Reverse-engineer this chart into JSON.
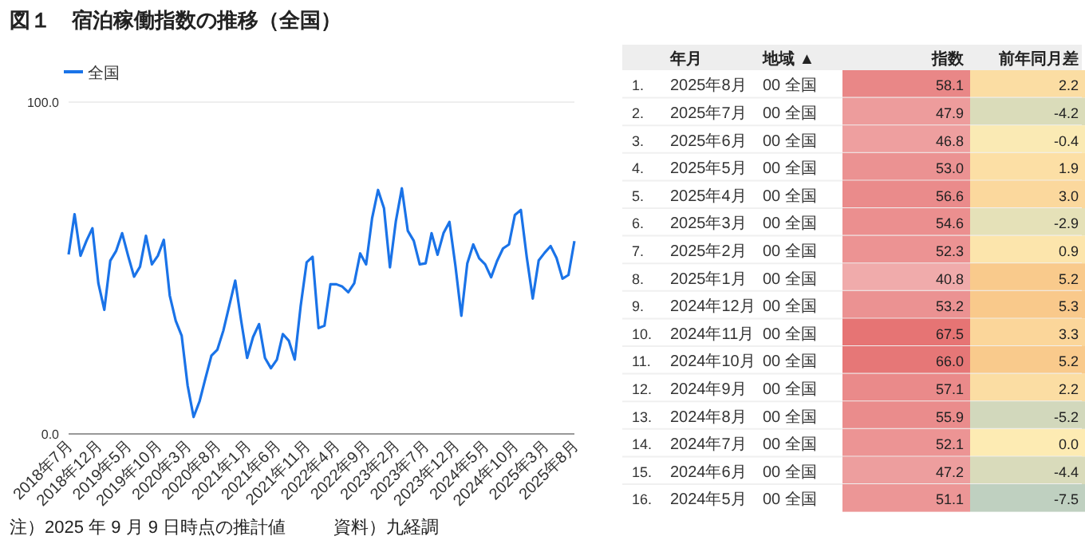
{
  "chart_data": [
    {
      "type": "line",
      "title": "図１　宿泊稼働指数の推移（全国）",
      "categories": [
        "2018年7月",
        null,
        null,
        null,
        null,
        "2018年12月",
        null,
        null,
        null,
        null,
        "2019年5月",
        null,
        null,
        null,
        null,
        "2019年10月",
        null,
        null,
        null,
        null,
        "2020年3月",
        null,
        null,
        null,
        null,
        "2020年8月",
        null,
        null,
        null,
        null,
        "2021年1月",
        null,
        null,
        null,
        null,
        "2021年6月",
        null,
        null,
        null,
        null,
        "2021年11月",
        null,
        null,
        null,
        null,
        "2022年4月",
        null,
        null,
        null,
        null,
        "2022年9月",
        null,
        null,
        null,
        null,
        "2023年2月",
        null,
        null,
        null,
        null,
        "2023年7月",
        null,
        null,
        null,
        null,
        "2023年12月",
        null,
        null,
        null,
        null,
        "2024年5月",
        null,
        null,
        null,
        null,
        "2024年10月",
        null,
        null,
        null,
        null,
        "2025年3月",
        null,
        null,
        null,
        null,
        "2025年8月"
      ],
      "series": [
        {
          "name": "全国",
          "color": "#1a73e8",
          "values": [
            54.1,
            66.2,
            53.7,
            58.2,
            62.0,
            45.4,
            37.4,
            52.2,
            55.2,
            60.5,
            53.7,
            47.4,
            50.4,
            59.7,
            51.1,
            53.7,
            58.5,
            41.7,
            34.1,
            29.6,
            14.6,
            5.1,
            9.8,
            16.8,
            23.6,
            25.4,
            31.1,
            38.6,
            46.2,
            34.1,
            22.9,
            29.2,
            33.1,
            22.9,
            19.8,
            22.4,
            30.1,
            28.1,
            22.4,
            38.6,
            51.7,
            53.4,
            31.9,
            32.6,
            45.1,
            45.1,
            44.4,
            42.7,
            45.4,
            54.4,
            51.1,
            65.0,
            73.5,
            68.0,
            50.2,
            64.2,
            74.0,
            61.2,
            58.2,
            51.1,
            51.4,
            60.5,
            54.0,
            60.5,
            63.9,
            50.7,
            35.6,
            51.4,
            57.1,
            52.9,
            51.1,
            47.2,
            52.1,
            55.9,
            57.1,
            66.0,
            67.5,
            53.2,
            40.8,
            52.3,
            54.6,
            56.6,
            53.0,
            46.8,
            47.9,
            58.1
          ]
        }
      ],
      "ylim": [
        0,
        100
      ],
      "yticks": [
        {
          "value": 0,
          "label": "0.0"
        },
        {
          "value": 100,
          "label": "100.0"
        }
      ],
      "grid": "y",
      "legend": "top left",
      "annotations": [
        "注）2025 年 9 月 9 日時点の推計値",
        "資料）九経調"
      ]
    },
    {
      "type": "heatmap",
      "ylabel": "年月",
      "categories": [
        "地域 ▲",
        "指数",
        "前年同月差"
      ],
      "y_categories": [
        "2025年8月",
        "2025年7月",
        "2025年6月",
        "2025年5月",
        "2025年4月",
        "2025年3月",
        "2025年2月",
        "2025年1月",
        "2024年12月",
        "2024年11月",
        "2024年10月",
        "2024年9月",
        "2024年8月",
        "2024年7月",
        "2024年6月",
        "2024年5月"
      ],
      "y2_categories": [
        "1.",
        "2.",
        "3.",
        "4.",
        "5.",
        "6.",
        "7.",
        "8.",
        "9.",
        "10.",
        "11.",
        "12.",
        "13.",
        "14.",
        "15.",
        "16."
      ],
      "cells": [
        [
          null,
          58.1,
          2.2
        ],
        [
          null,
          47.9,
          -4.2
        ],
        [
          null,
          46.8,
          -0.4
        ],
        [
          null,
          53.0,
          1.9
        ],
        [
          null,
          56.6,
          3.0
        ],
        [
          null,
          54.6,
          -2.9
        ],
        [
          null,
          52.3,
          0.9
        ],
        [
          null,
          40.8,
          5.2
        ],
        [
          null,
          53.2,
          5.3
        ],
        [
          null,
          67.5,
          3.3
        ],
        [
          null,
          66.0,
          5.2
        ],
        [
          null,
          57.1,
          2.2
        ],
        [
          null,
          55.9,
          -5.2
        ],
        [
          null,
          52.1,
          0.0
        ],
        [
          null,
          47.2,
          -4.4
        ],
        [
          null,
          51.1,
          -7.5
        ]
      ],
      "cell_labels": [
        [
          "00 全国",
          "58.1",
          "2.2"
        ],
        [
          "00 全国",
          "47.9",
          "-4.2"
        ],
        [
          "00 全国",
          "46.8",
          "-0.4"
        ],
        [
          "00 全国",
          "53.0",
          "1.9"
        ],
        [
          "00 全国",
          "56.6",
          "3.0"
        ],
        [
          "00 全国",
          "54.6",
          "-2.9"
        ],
        [
          "00 全国",
          "52.3",
          "0.9"
        ],
        [
          "00 全国",
          "40.8",
          "5.2"
        ],
        [
          "00 全国",
          "53.2",
          "5.3"
        ],
        [
          "00 全国",
          "67.5",
          "3.3"
        ],
        [
          "00 全国",
          "66.0",
          "5.2"
        ],
        [
          "00 全国",
          "57.1",
          "2.2"
        ],
        [
          "00 全国",
          "55.9",
          "-5.2"
        ],
        [
          "00 全国",
          "52.1",
          "0.0"
        ],
        [
          "00 全国",
          "47.2",
          "-4.4"
        ],
        [
          "00 全国",
          "51.1",
          "-7.5"
        ]
      ]
    }
  ]
}
